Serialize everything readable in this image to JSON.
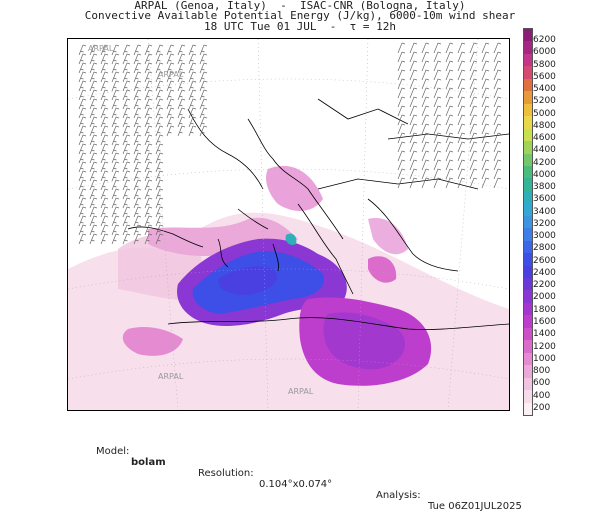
{
  "header": {
    "line1": "ARPAL (Genoa, Italy)  -  ISAC-CNR (Bologna, Italy)",
    "line2": "Convective Available Potential Energy (J/kg), 6000-10m wind shear",
    "line3": "18 UTC Tue 01 JUL  -  τ = 12h"
  },
  "colorbar": {
    "ticks": [
      "6200",
      "6000",
      "5800",
      "5600",
      "5400",
      "5200",
      "5000",
      "4800",
      "4600",
      "4400",
      "4200",
      "4000",
      "3800",
      "3600",
      "3400",
      "3200",
      "3000",
      "2800",
      "2600",
      "2400",
      "2200",
      "2000",
      "1800",
      "1600",
      "1400",
      "1200",
      "1000",
      "800",
      "600",
      "400",
      "200"
    ],
    "colors": [
      "#8a1e76",
      "#a6277f",
      "#c2368b",
      "#d54a6e",
      "#e0703f",
      "#e89a3a",
      "#efbf3c",
      "#e9d84a",
      "#c9df4f",
      "#9fd45a",
      "#74c86a",
      "#4cbc7a",
      "#34b59a",
      "#2fb0b8",
      "#34a8d0",
      "#3d95df",
      "#3f7ee6",
      "#3e65e8",
      "#3d4fe6",
      "#4a3fe0",
      "#6a3ad8",
      "#8a37d3",
      "#a338cf",
      "#bd3dcc",
      "#cf4fc7",
      "#dc6ccb",
      "#e48bd1",
      "#eaa9d8",
      "#f0c4e0",
      "#f6dcea",
      "#fbf0f4"
    ]
  },
  "map": {
    "watermark": "ARPAL"
  },
  "footer": {
    "model_label": "Model:",
    "model_value": "bolam",
    "resolution_label": "Resolution:",
    "resolution_value": "0.104°x0.074°",
    "analysis_label": "Analysis:",
    "analysis_value": "Tue 06Z01JUL2025"
  }
}
